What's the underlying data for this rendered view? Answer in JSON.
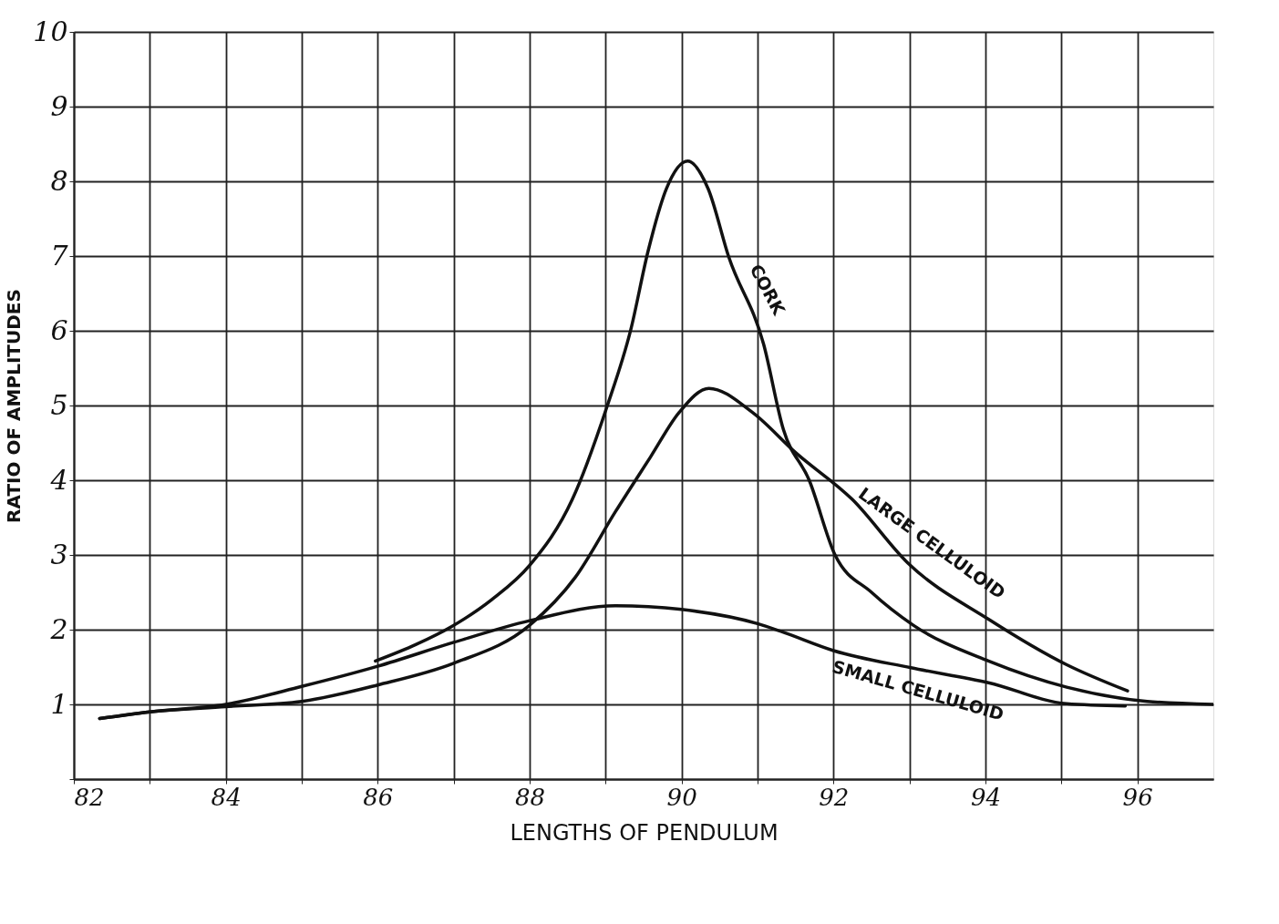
{
  "chart_data": {
    "type": "line",
    "xlabel": "LENGTHS OF PENDULUM",
    "ylabel": "RATIO OF AMPLITUDES",
    "xlim": [
      82,
      97
    ],
    "ylim": [
      0,
      10
    ],
    "xticks": [
      82,
      {
        "value": 83,
        "label": null
      },
      84,
      {
        "value": 85,
        "label": null
      },
      86,
      {
        "value": 87,
        "label": null
      },
      88,
      {
        "value": 89,
        "label": null
      },
      90,
      {
        "value": 91,
        "label": null
      },
      92,
      {
        "value": 93,
        "label": null
      },
      94,
      {
        "value": 95,
        "label": null
      },
      96
    ],
    "yticks": [
      {
        "value": 0,
        "label": null
      },
      1,
      2,
      3,
      4,
      5,
      6,
      7,
      8,
      9,
      10
    ],
    "grid": true,
    "legend": false,
    "marker": "none",
    "line_style": "solid",
    "series": [
      {
        "name": "CORK",
        "color": "#111111",
        "x": [
          85.97,
          86.5,
          86.97,
          87.5,
          88.0,
          88.56,
          89.02,
          89.33,
          89.56,
          89.8,
          90.08,
          90.35,
          90.62,
          91.08,
          91.34,
          91.68,
          92.02,
          92.5,
          93.05,
          94.04,
          95.07,
          96.13,
          97.0
        ],
        "values": [
          1.58,
          1.8,
          2.04,
          2.4,
          2.86,
          3.74,
          4.99,
          6.01,
          7.07,
          7.9,
          8.27,
          7.9,
          6.99,
          5.82,
          4.68,
          4.0,
          3.0,
          2.5,
          2.06,
          1.58,
          1.23,
          1.04,
          1.0
        ]
      },
      {
        "name": "LARGE CELLULOID",
        "color": "#111111",
        "x": [
          82.34,
          83.0,
          84.0,
          85.0,
          86.0,
          87.0,
          88.0,
          88.6,
          89.13,
          89.59,
          89.97,
          90.36,
          90.93,
          91.5,
          92.25,
          92.98,
          94.04,
          95.07,
          95.87
        ],
        "values": [
          0.81,
          0.9,
          0.97,
          1.04,
          1.26,
          1.55,
          2.06,
          2.7,
          3.58,
          4.31,
          4.91,
          5.23,
          4.91,
          4.37,
          3.74,
          2.89,
          2.14,
          1.53,
          1.18
        ]
      },
      {
        "name": "SMALL CELLULOID",
        "color": "#111111",
        "x": [
          82.34,
          83.0,
          84.0,
          85.0,
          86.0,
          87.0,
          88.0,
          89.13,
          90.0,
          91.0,
          91.3,
          92.0,
          93.02,
          94.04,
          95.07,
          95.84
        ],
        "values": [
          0.81,
          0.9,
          1.0,
          1.24,
          1.51,
          1.83,
          2.12,
          2.32,
          2.27,
          2.08,
          1.98,
          1.72,
          1.49,
          1.29,
          1.01,
          0.98
        ]
      }
    ]
  }
}
